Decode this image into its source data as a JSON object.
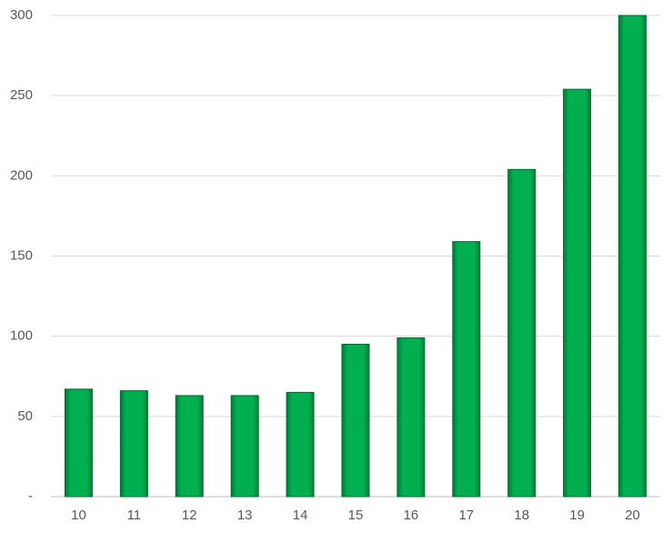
{
  "chart_data": {
    "type": "bar",
    "categories": [
      "10",
      "11",
      "12",
      "13",
      "14",
      "15",
      "16",
      "17",
      "18",
      "19",
      "20"
    ],
    "values": [
      67,
      66,
      63,
      63,
      65,
      95,
      99,
      159,
      204,
      254,
      300
    ],
    "color": "#00b050",
    "ylim": [
      0,
      300
    ],
    "yticks": [
      {
        "value": 0,
        "label": "-"
      },
      50,
      100,
      150,
      200,
      250,
      300
    ],
    "grid": true
  }
}
